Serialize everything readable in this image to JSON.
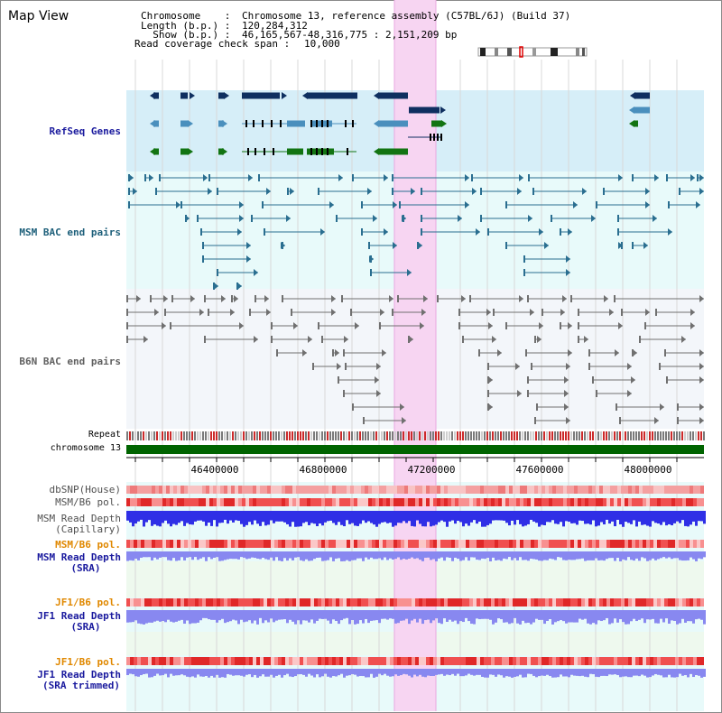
{
  "page_title": "Map View",
  "header": {
    "chromosome_key": "Chromosome    :",
    "chromosome_val": "Chromosome 13, reference assembly (C57BL/6J) (Build 37)",
    "length_key": "Length (b.p.) :",
    "length_val": "120,284,312",
    "show_key": "  Show (b.p.) :",
    "show_val": "46,165,567-48,316,775 : 2,151,209 bp",
    "coverage_key": "Read coverage check span :",
    "coverage_val": "10,000"
  },
  "tracks": {
    "refseq": "RefSeq Genes",
    "msm_bac": "MSM BAC end pairs",
    "b6n_bac": "B6N BAC end pairs",
    "repeat": "Repeat",
    "chromosome": "chromosome 13",
    "dbsnp": "dbSNP(House)",
    "msm_b6_pol_1": "MSM/B6 pol.",
    "msm_read_depth_cap_1": "MSM Read Depth",
    "msm_read_depth_cap_2": "(Capillary)",
    "msm_b6_pol_2": "MSM/B6 pol.",
    "msm_read_depth_sra_1": "MSM Read Depth",
    "msm_read_depth_sra_2": "(SRA)",
    "jf1_b6_pol_1": "JF1/B6 pol.",
    "jf1_read_depth_sra_1": "JF1 Read Depth",
    "jf1_read_depth_sra_2": "(SRA)",
    "jf1_b6_pol_2": "JF1/B6 pol.",
    "jf1_read_depth_trim_1": "JF1 Read Depth",
    "jf1_read_depth_trim_2": "(SRA trimmed)"
  },
  "axis_ticks": [
    "46400000",
    "46800000",
    "47200000",
    "47600000",
    "48000000"
  ],
  "colors": {
    "refseq_bg": "#d6eef8",
    "msm_bg": "#e8fafa",
    "b6n_bg": "#f3f6fa",
    "highlight": "#f7d5f2",
    "navy": "#0f2f60",
    "steel": "#4a8fbd",
    "green": "#127412",
    "teal": "#2a6e90",
    "gray": "#707070",
    "chrom_green": "#006400",
    "depth_blue": "#2f2fe6",
    "depth_light": "#8888f0",
    "label_blue": "#1a1a9e",
    "label_teal": "#1d5f7a",
    "label_gray": "#505050",
    "label_orange": "#e08800"
  }
}
